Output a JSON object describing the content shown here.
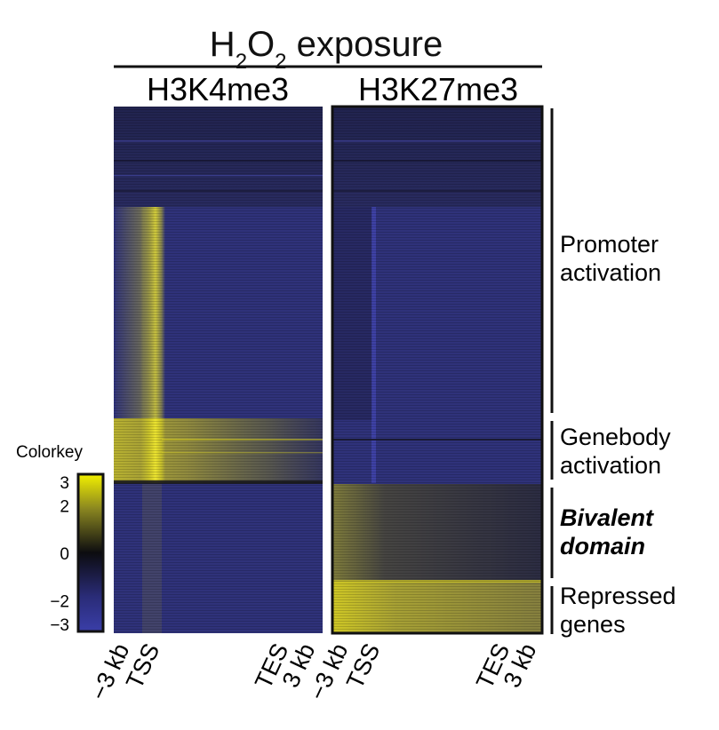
{
  "title": {
    "prefix": "H",
    "sub1": "2",
    "mid": "O",
    "sub2": "2",
    "suffix": " exposure"
  },
  "chart_data": {
    "type": "heatmap",
    "panels": [
      {
        "name": "H3K4me3"
      },
      {
        "name": "H3K27me3"
      }
    ],
    "x_ticks": [
      "−3 kb",
      "TSS",
      "TES",
      "3 kb"
    ],
    "clusters": [
      {
        "label": [
          "Promoter",
          "activation"
        ],
        "emphasis": false,
        "fraction": 0.605
      },
      {
        "label": [
          "Genebody",
          "activation"
        ],
        "emphasis": false,
        "fraction": 0.124
      },
      {
        "label": [
          "Bivalent",
          "domain"
        ],
        "emphasis": true,
        "fraction": 0.19
      },
      {
        "label": [
          "Repressed",
          "genes"
        ],
        "emphasis": false,
        "fraction": 0.095
      }
    ],
    "colorkey": {
      "title": "Colorkey",
      "ticks": [
        {
          "value": 3,
          "label": "3"
        },
        {
          "value": 2,
          "label": "2"
        },
        {
          "value": 0,
          "label": "0"
        },
        {
          "value": -2,
          "label": "−2"
        },
        {
          "value": -3,
          "label": "−3"
        }
      ],
      "range": [
        -3,
        3
      ],
      "colors": {
        "low": "#3a3ea8",
        "mid": "#0c0c10",
        "high": "#f2f000"
      }
    },
    "colors": {
      "background": "#2f327a",
      "signal": "#e8e020"
    }
  }
}
